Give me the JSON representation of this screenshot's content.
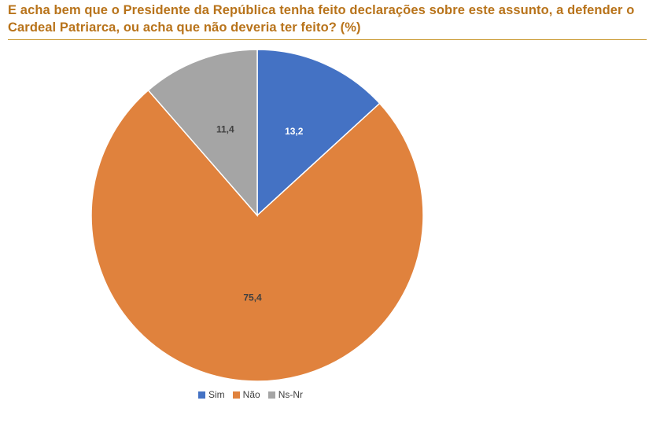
{
  "title": "E acha bem que o Presidente da República tenha feito declarações sobre este assunto, a defender o Cardeal Patriarca, ou acha que não deveria ter feito? (%)",
  "chart_data": {
    "type": "pie",
    "title": "E acha bem que o Presidente da República tenha feito declarações sobre este assunto, a defender o Cardeal Patriarca, ou acha que não deveria ter feito? (%)",
    "categories": [
      "Sim",
      "Não",
      "Ns-Nr"
    ],
    "values": [
      13.2,
      75.4,
      11.4
    ],
    "value_labels": [
      "13,2",
      "75,4",
      "11,4"
    ],
    "colors": [
      "#4472c4",
      "#e0823d",
      "#a5a5a5"
    ],
    "label_colors": [
      "#ffffff",
      "#404040",
      "#404040"
    ],
    "start_angle_deg": 0,
    "direction": "clockwise",
    "legend_position": "bottom"
  }
}
